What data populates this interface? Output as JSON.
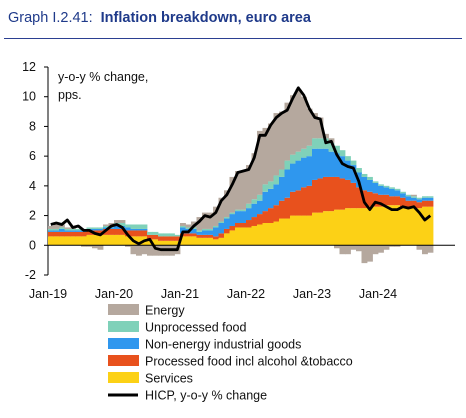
{
  "header": {
    "graph_number": "Graph I.2.41:",
    "title": "Inflation breakdown, euro area"
  },
  "chart_data": {
    "type": "area",
    "title": "Inflation breakdown, euro area",
    "ylabel": "y-o-y % change, pps.",
    "ylim": [
      -2,
      12
    ],
    "yticks": [
      "12",
      "10",
      "8",
      "6",
      "4",
      "2",
      "0",
      "-2"
    ],
    "xticks": [
      "Jan-19",
      "Jan-20",
      "Jan-21",
      "Jan-22",
      "Jan-23",
      "Jan-24"
    ],
    "x_start": "Jan-19",
    "colors": {
      "Energy": "#b5a89e",
      "Unprocessed food": "#7fd1b9",
      "Non-energy industrial goods": "#2f97ee",
      "Processed food incl alcohol &tobacco": "#e8511d",
      "Services": "#fcd116",
      "HICP, y-o-y % change": "#000000"
    },
    "series": [
      {
        "name": "Energy",
        "values": [
          0.2,
          0.3,
          0.2,
          0.1,
          0.1,
          0.0,
          -0.1,
          -0.1,
          -0.2,
          -0.3,
          0.1,
          0.2,
          0.2,
          0.2,
          -0.1,
          -0.6,
          -0.7,
          -0.6,
          -0.7,
          -0.7,
          -0.7,
          -0.7,
          -0.7,
          -0.6,
          0.2,
          0.2,
          0.4,
          0.9,
          1.1,
          1.1,
          1.3,
          1.6,
          1.8,
          2.4,
          2.6,
          2.6,
          2.6,
          3.1,
          4.3,
          3.8,
          3.9,
          4.2,
          3.9,
          3.9,
          4.0,
          4.2,
          3.5,
          2.5,
          1.7,
          1.4,
          0.3,
          0.3,
          -0.2,
          -0.6,
          -0.6,
          -0.3,
          -0.4,
          -1.2,
          -1.1,
          -0.6,
          -0.5,
          -0.3,
          -0.1,
          -0.1,
          0.0,
          0.0,
          0.1,
          -0.3,
          -0.6,
          -0.5
        ]
      },
      {
        "name": "Unprocessed food",
        "values": [
          0.1,
          0.1,
          0.1,
          0.1,
          0.1,
          0.1,
          0.1,
          0.1,
          0.1,
          0.1,
          0.1,
          0.1,
          0.2,
          0.2,
          0.2,
          0.3,
          0.3,
          0.3,
          0.2,
          0.2,
          0.2,
          0.2,
          0.2,
          0.1,
          0.1,
          0.1,
          0.1,
          0.1,
          0.1,
          0.1,
          0.1,
          0.1,
          0.1,
          0.1,
          0.1,
          0.1,
          0.3,
          0.3,
          0.4,
          0.5,
          0.5,
          0.6,
          0.5,
          0.6,
          0.6,
          0.6,
          0.6,
          0.7,
          0.7,
          0.7,
          0.7,
          0.6,
          0.5,
          0.4,
          0.3,
          0.3,
          0.3,
          0.2,
          0.2,
          0.1,
          0.1,
          0.1,
          0.1,
          0.1,
          0.1,
          0.1,
          0.1,
          0.1,
          0.1,
          0.1
        ]
      },
      {
        "name": "Non-energy industrial goods",
        "values": [
          0.1,
          0.1,
          0.2,
          0.1,
          0.1,
          0.1,
          0.1,
          0.1,
          0.1,
          0.1,
          0.1,
          0.1,
          0.2,
          0.2,
          0.2,
          0.1,
          0.1,
          0.1,
          0.0,
          0.0,
          0.0,
          0.0,
          0.0,
          0.0,
          0.4,
          0.3,
          0.3,
          0.2,
          0.3,
          0.3,
          0.6,
          0.7,
          0.7,
          0.8,
          0.8,
          0.8,
          0.8,
          0.9,
          0.9,
          1.3,
          1.3,
          1.4,
          1.6,
          1.9,
          1.9,
          2.0,
          2.0,
          2.0,
          2.1,
          2.0,
          1.9,
          1.7,
          1.6,
          1.5,
          1.3,
          1.2,
          1.0,
          0.9,
          0.8,
          0.7,
          0.6,
          0.5,
          0.5,
          0.4,
          0.3,
          0.3,
          0.2,
          0.2,
          0.2,
          0.2
        ]
      },
      {
        "name": "Processed food incl alcohol &tobacco",
        "values": [
          0.3,
          0.3,
          0.3,
          0.3,
          0.3,
          0.3,
          0.3,
          0.3,
          0.3,
          0.3,
          0.4,
          0.4,
          0.4,
          0.4,
          0.4,
          0.4,
          0.4,
          0.4,
          0.3,
          0.3,
          0.3,
          0.3,
          0.3,
          0.3,
          0.2,
          0.2,
          0.2,
          0.2,
          0.2,
          0.2,
          0.2,
          0.3,
          0.3,
          0.3,
          0.3,
          0.3,
          0.5,
          0.6,
          0.7,
          0.8,
          1.0,
          1.1,
          1.2,
          1.4,
          1.6,
          1.7,
          1.9,
          2.0,
          2.2,
          2.3,
          2.3,
          2.3,
          2.2,
          2.1,
          1.9,
          1.7,
          1.4,
          1.2,
          1.0,
          0.9,
          0.8,
          0.7,
          0.6,
          0.6,
          0.6,
          0.5,
          0.5,
          0.4,
          0.4,
          0.4
        ]
      },
      {
        "name": "Services",
        "values": [
          0.6,
          0.6,
          0.6,
          0.6,
          0.6,
          0.6,
          0.6,
          0.7,
          0.7,
          0.7,
          0.7,
          0.7,
          0.7,
          0.7,
          0.6,
          0.6,
          0.6,
          0.6,
          0.4,
          0.4,
          0.3,
          0.3,
          0.3,
          0.3,
          0.6,
          0.6,
          0.6,
          0.5,
          0.5,
          0.5,
          0.4,
          0.5,
          0.8,
          1.0,
          1.2,
          1.2,
          1.2,
          1.3,
          1.4,
          1.5,
          1.5,
          1.6,
          1.8,
          1.8,
          2.0,
          2.0,
          2.0,
          2.0,
          2.2,
          2.2,
          2.3,
          2.3,
          2.4,
          2.4,
          2.5,
          2.5,
          2.5,
          2.5,
          2.6,
          2.6,
          2.6,
          2.7,
          2.7,
          2.7,
          2.6,
          2.5,
          2.5,
          2.5,
          2.6,
          2.6
        ]
      },
      {
        "name": "HICP, y-o-y % change",
        "values": [
          1.4,
          1.5,
          1.4,
          1.7,
          1.2,
          1.3,
          1.0,
          1.0,
          0.8,
          0.7,
          1.0,
          1.3,
          1.4,
          1.2,
          0.7,
          0.3,
          0.1,
          0.3,
          0.4,
          -0.2,
          -0.3,
          -0.3,
          -0.3,
          -0.3,
          0.9,
          0.9,
          1.3,
          1.6,
          2.0,
          1.9,
          2.2,
          3.0,
          3.4,
          4.1,
          4.9,
          5.0,
          5.1,
          5.9,
          7.4,
          7.4,
          8.1,
          8.6,
          8.9,
          9.1,
          9.9,
          10.6,
          10.1,
          9.2,
          8.6,
          8.5,
          6.9,
          7.0,
          6.1,
          5.5,
          5.3,
          5.2,
          4.3,
          2.9,
          2.4,
          2.9,
          2.8,
          2.6,
          2.4,
          2.4,
          2.6,
          2.5,
          2.6,
          2.2,
          1.7,
          2.0
        ]
      }
    ],
    "legend": [
      "Energy",
      "Unprocessed food",
      "Non-energy industrial goods",
      "Processed food incl alcohol &tobacco",
      "Services",
      "HICP, y-o-y % change"
    ]
  }
}
